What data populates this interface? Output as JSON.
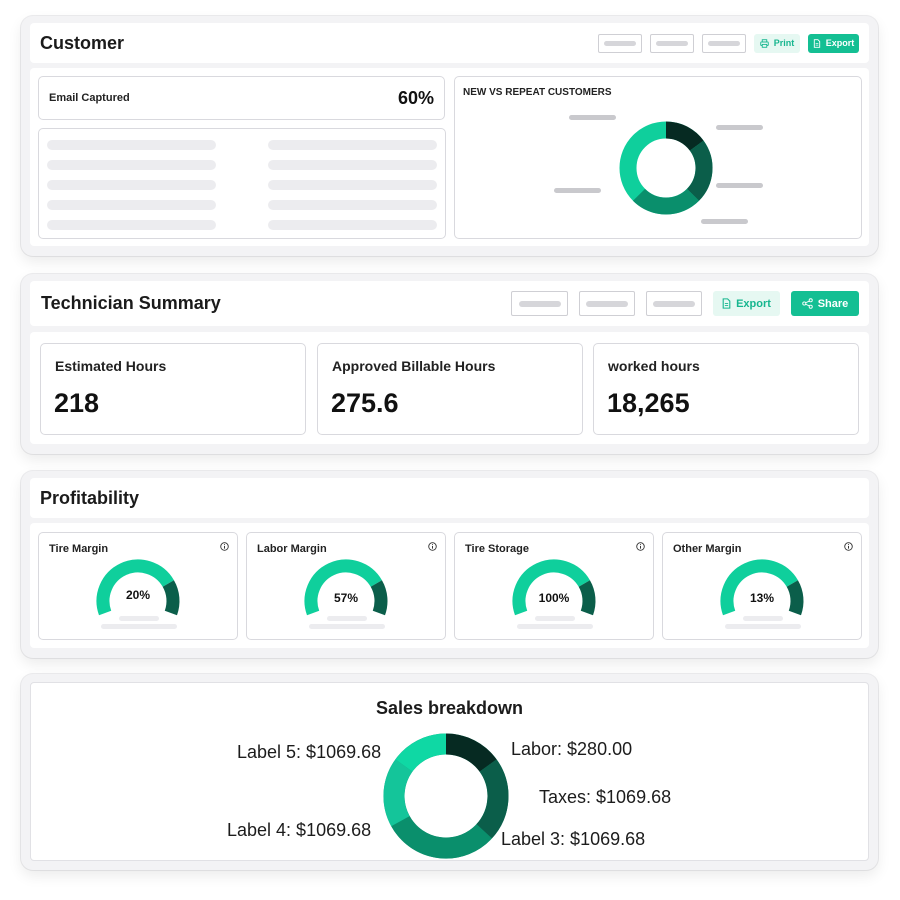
{
  "customer": {
    "title": "Customer",
    "print_label": "Print",
    "export_label": "Export",
    "email_captured_label": "Email Captured",
    "email_captured_value": "60%",
    "new_vs_repeat_title": "NEW VS REPEAT CUSTOMERS"
  },
  "technician": {
    "title": "Technician Summary",
    "export_label": "Export",
    "share_label": "Share",
    "metrics": [
      {
        "label": "Estimated Hours",
        "value": "218"
      },
      {
        "label": "Approved Billable Hours",
        "value": "275.6"
      },
      {
        "label": "worked hours",
        "value": "18,265"
      }
    ]
  },
  "profitability": {
    "title": "Profitability",
    "gauges": [
      {
        "label": "Tire Margin",
        "value": "20%"
      },
      {
        "label": "Labor Margin",
        "value": "57%"
      },
      {
        "label": "Tire Storage",
        "value": "100%"
      },
      {
        "label": "Other Margin",
        "value": "13%"
      }
    ]
  },
  "sales": {
    "title": "Sales breakdown",
    "labels": {
      "labor": "Labor: $280.00",
      "taxes": "Taxes: $1069.68",
      "label3": "Label 3: $1069.68",
      "label4": "Label 4: $1069.68",
      "label5": "Label 5: $1069.68"
    }
  },
  "colors": {
    "accent": "#14bf93",
    "teal_light": "#0fcf9c",
    "teal_mid": "#0a8f6c",
    "teal_dark": "#0b5e4a",
    "teal_darkest": "#062a22"
  }
}
